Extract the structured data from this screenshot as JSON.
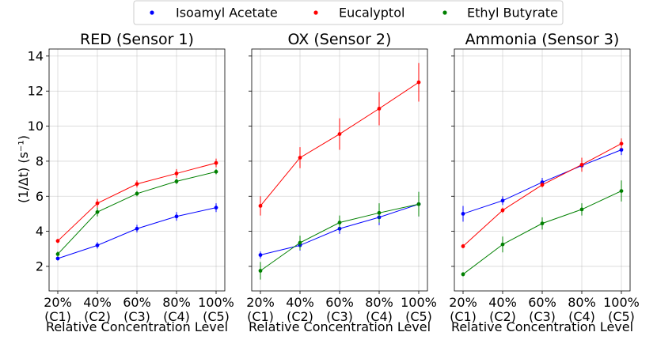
{
  "chart_data": {
    "type": "line",
    "legend": {
      "placement": "top-center",
      "entries": [
        {
          "name": "Isoamyl Acetate",
          "color": "#0000ff"
        },
        {
          "name": "Eucalyptol",
          "color": "#ff0000"
        },
        {
          "name": "Ethyl Butyrate",
          "color": "#008000"
        }
      ]
    },
    "ylabel": "(1/Δt) (s⁻¹)",
    "xlabel": "Relative Concentration Level",
    "categories": [
      "20%\n(C1)",
      "40%\n(C2)",
      "60%\n(C3)",
      "80%\n(C4)",
      "100%\n(C5)"
    ],
    "ylim": [
      0.6,
      14.4
    ],
    "yticks": [
      "2",
      "4",
      "6",
      "8",
      "10",
      "12",
      "14"
    ],
    "grid": true,
    "panels": [
      {
        "title": "RED (Sensor 1)",
        "show_yticklabels": true,
        "series": [
          {
            "name": "Isoamyl Acetate",
            "color": "#0000ff",
            "values": [
              2.45,
              3.2,
              4.15,
              4.85,
              5.35
            ],
            "errors": [
              0.12,
              0.18,
              0.22,
              0.25,
              0.25
            ]
          },
          {
            "name": "Eucalyptol",
            "color": "#ff0000",
            "values": [
              3.45,
              5.6,
              6.7,
              7.3,
              7.9
            ],
            "errors": [
              0.12,
              0.25,
              0.2,
              0.25,
              0.25
            ]
          },
          {
            "name": "Ethyl Butyrate",
            "color": "#008000",
            "values": [
              2.7,
              5.1,
              6.15,
              6.85,
              7.4
            ],
            "errors": [
              0.15,
              0.25,
              0.15,
              0.15,
              0.15
            ]
          }
        ]
      },
      {
        "title": "OX (Sensor 2)",
        "show_yticklabels": false,
        "series": [
          {
            "name": "Isoamyl Acetate",
            "color": "#0000ff",
            "values": [
              2.65,
              3.2,
              4.15,
              4.8,
              5.55
            ],
            "errors": [
              0.2,
              0.3,
              0.3,
              0.45,
              0.7
            ]
          },
          {
            "name": "Eucalyptol",
            "color": "#ff0000",
            "values": [
              5.45,
              8.2,
              9.55,
              11.0,
              12.5
            ],
            "errors": [
              0.55,
              0.6,
              0.9,
              0.95,
              1.1
            ]
          },
          {
            "name": "Ethyl Butyrate",
            "color": "#008000",
            "values": [
              1.75,
              3.35,
              4.5,
              5.05,
              5.55
            ],
            "errors": [
              0.5,
              0.4,
              0.4,
              0.55,
              0.7
            ]
          }
        ]
      },
      {
        "title": "Ammonia (Sensor 3)",
        "show_yticklabels": false,
        "series": [
          {
            "name": "Isoamyl Acetate",
            "color": "#0000ff",
            "values": [
              5.0,
              5.75,
              6.8,
              7.75,
              8.65
            ],
            "errors": [
              0.45,
              0.25,
              0.25,
              0.3,
              0.3
            ]
          },
          {
            "name": "Eucalyptol",
            "color": "#ff0000",
            "values": [
              3.15,
              5.2,
              6.65,
              7.8,
              9.0
            ],
            "errors": [
              0.12,
              0.15,
              0.15,
              0.4,
              0.3
            ]
          },
          {
            "name": "Ethyl Butyrate",
            "color": "#008000",
            "values": [
              1.55,
              3.25,
              4.45,
              5.25,
              6.3
            ],
            "errors": [
              0.12,
              0.45,
              0.35,
              0.35,
              0.6
            ]
          }
        ]
      }
    ]
  }
}
